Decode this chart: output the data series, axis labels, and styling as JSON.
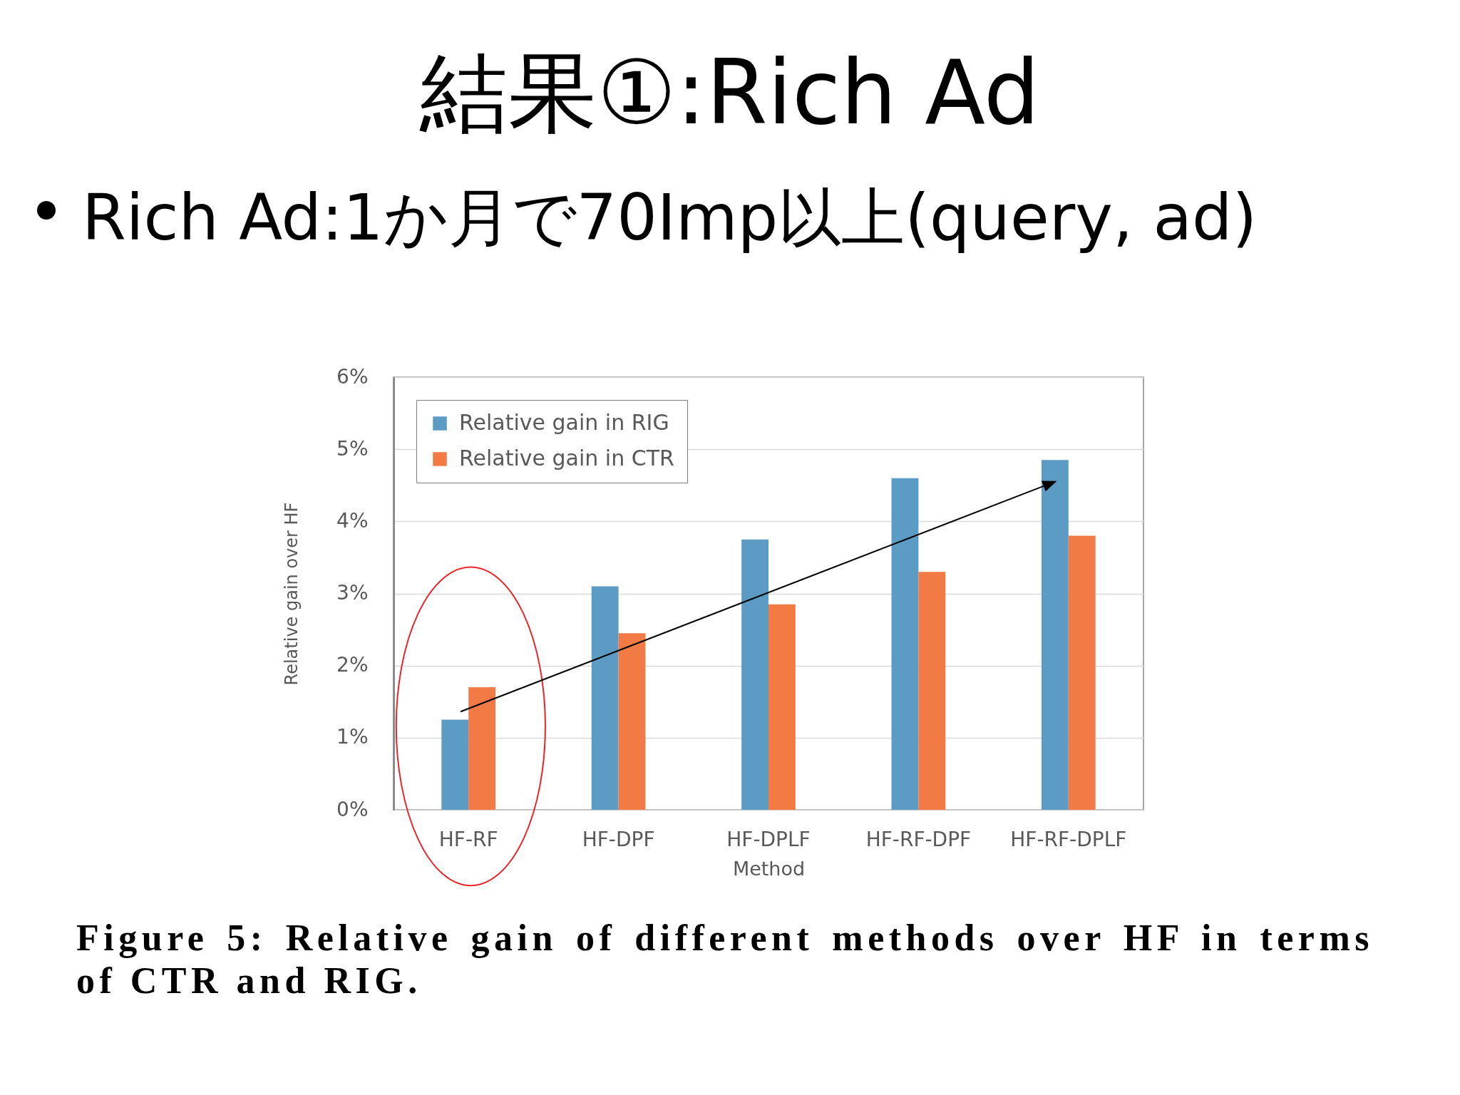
{
  "chart_data": {
    "type": "bar",
    "title": "結果①:Rich Ad",
    "subtitle": "Rich Ad:1か月で70Imp以上(query, ad)",
    "xlabel": "Method",
    "ylabel": "Relative gain over HF",
    "annotations": [
      "Figure 5: Relative gain of different methods over HF in terms of CTR and RIG."
    ],
    "categories": [
      "HF-RF",
      "HF-DPF",
      "HF-DPLF",
      "HF-RF-DPF",
      "HF-RF-DPLF"
    ],
    "series": [
      {
        "name": "Relative gain in RIG",
        "color": "#5b9bc4",
        "values": [
          1.25,
          3.1,
          3.75,
          4.6,
          4.85
        ]
      },
      {
        "name": "Relative gain in CTR",
        "color": "#f27a44",
        "values": [
          1.7,
          2.45,
          2.85,
          3.3,
          3.8
        ]
      }
    ],
    "ylim": [
      0,
      6
    ],
    "yticks": [
      {
        "value": 0,
        "label": "0%"
      },
      {
        "value": 1,
        "label": "1%"
      },
      {
        "value": 2,
        "label": "2%"
      },
      {
        "value": 3,
        "label": "3%"
      },
      {
        "value": 4,
        "label": "4%"
      },
      {
        "value": 5,
        "label": "5%"
      },
      {
        "value": 6,
        "label": "6%"
      }
    ],
    "grid": true,
    "legend": "top left"
  }
}
